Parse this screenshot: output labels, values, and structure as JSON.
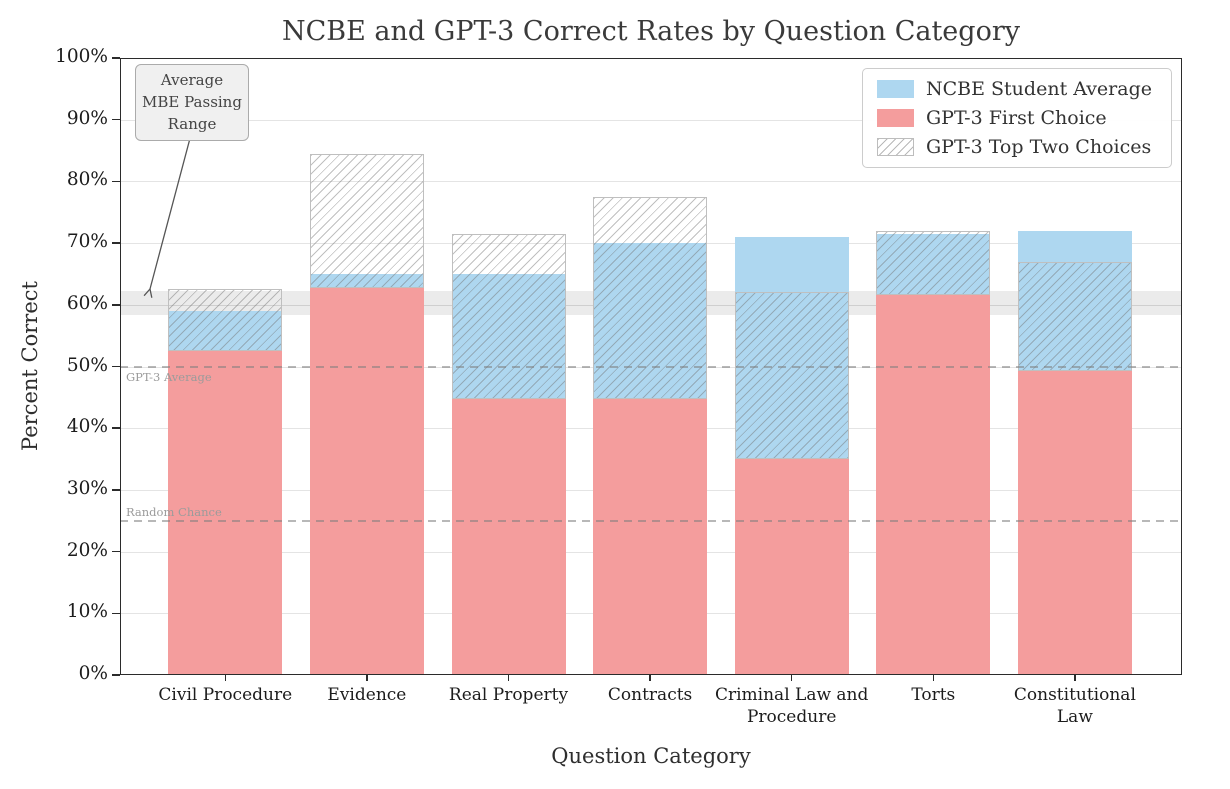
{
  "chart_data": {
    "type": "bar",
    "title": "NCBE and GPT-3 Correct Rates by Question Category",
    "xlabel": "Question Category",
    "ylabel": "Percent Correct",
    "ylim": [
      0,
      100
    ],
    "ytick_step": 10,
    "ytick_suffix": "%",
    "grid": true,
    "legend_position": "top-right",
    "categories": [
      "Civil Procedure",
      "Evidence",
      "Real Property",
      "Contracts",
      "Criminal Law and Procedure",
      "Torts",
      "Constitutional Law"
    ],
    "series": [
      {
        "name": "NCBE Student Average",
        "style": "solid",
        "color": "#aed7f0",
        "values": [
          59,
          65,
          65,
          70,
          71,
          71.5,
          72
        ]
      },
      {
        "name": "GPT-3 First Choice",
        "style": "solid",
        "color": "#f49d9d",
        "values": [
          52.5,
          62.7,
          44.7,
          44.7,
          35,
          61.6,
          49.2
        ]
      },
      {
        "name": "GPT-3 Top Two Choices",
        "style": "hatched",
        "color": "#bfbfbf",
        "values": [
          62.5,
          84.5,
          71.5,
          77.5,
          62,
          72,
          67
        ]
      }
    ],
    "reference_lines": [
      {
        "label": "GPT-3 Average",
        "value": 50,
        "style": "dashed",
        "label_side": "below"
      },
      {
        "label": "Random Chance",
        "value": 25,
        "style": "dashed",
        "label_side": "above"
      }
    ],
    "reference_band": {
      "label": "Average MBE Passing Range",
      "from": 58.3,
      "to": 62.2,
      "center_line": 60
    }
  }
}
